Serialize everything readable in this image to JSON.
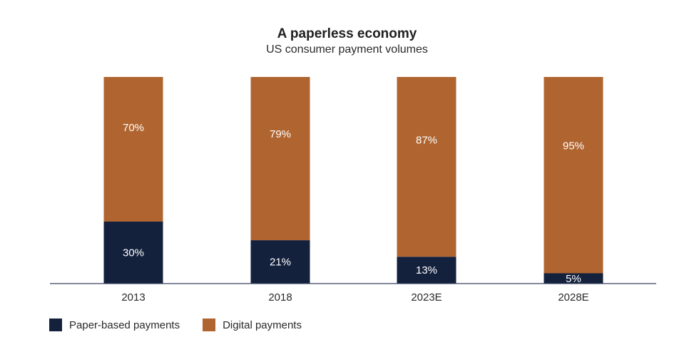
{
  "chart_data": {
    "type": "bar",
    "stacked": true,
    "title": "A paperless economy",
    "subtitle": "US consumer payment volumes",
    "categories": [
      "2013",
      "2018",
      "2023E",
      "2028E"
    ],
    "series": [
      {
        "name": "Paper-based payments",
        "color": "#14213d",
        "values": [
          30,
          21,
          13,
          5
        ],
        "labels": [
          "30%",
          "21%",
          "13%",
          "5%"
        ]
      },
      {
        "name": "Digital payments",
        "color": "#b06530",
        "values": [
          70,
          79,
          87,
          95
        ],
        "labels": [
          "70%",
          "79%",
          "87%",
          "95%"
        ]
      }
    ],
    "ylim": [
      0,
      100
    ],
    "grid": false,
    "legend_position": "bottom-left"
  }
}
